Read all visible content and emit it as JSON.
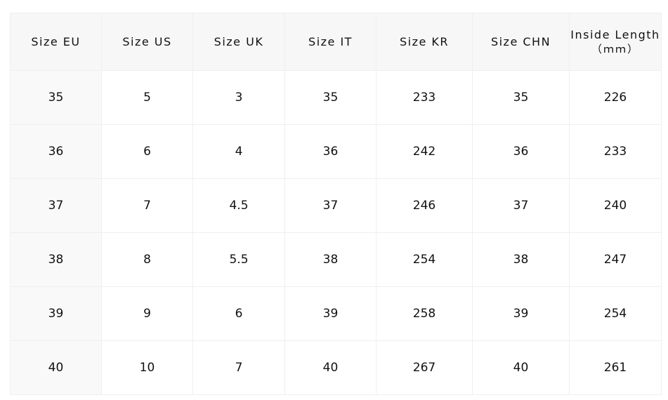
{
  "table": {
    "columns": [
      "Size EU",
      "Size US",
      "Size UK",
      "Size IT",
      "Size KR",
      "Size CHN",
      "Inside Length"
    ],
    "last_column_unit": "（ｍｍ）",
    "rows": [
      [
        35,
        5,
        3,
        35,
        233,
        35,
        226
      ],
      [
        36,
        6,
        4,
        36,
        242,
        36,
        233
      ],
      [
        37,
        7,
        4.5,
        37,
        246,
        37,
        240
      ],
      [
        38,
        8,
        5.5,
        38,
        254,
        38,
        247
      ],
      [
        39,
        9,
        6,
        39,
        258,
        39,
        254
      ],
      [
        40,
        10,
        7,
        40,
        267,
        40,
        261
      ]
    ]
  }
}
